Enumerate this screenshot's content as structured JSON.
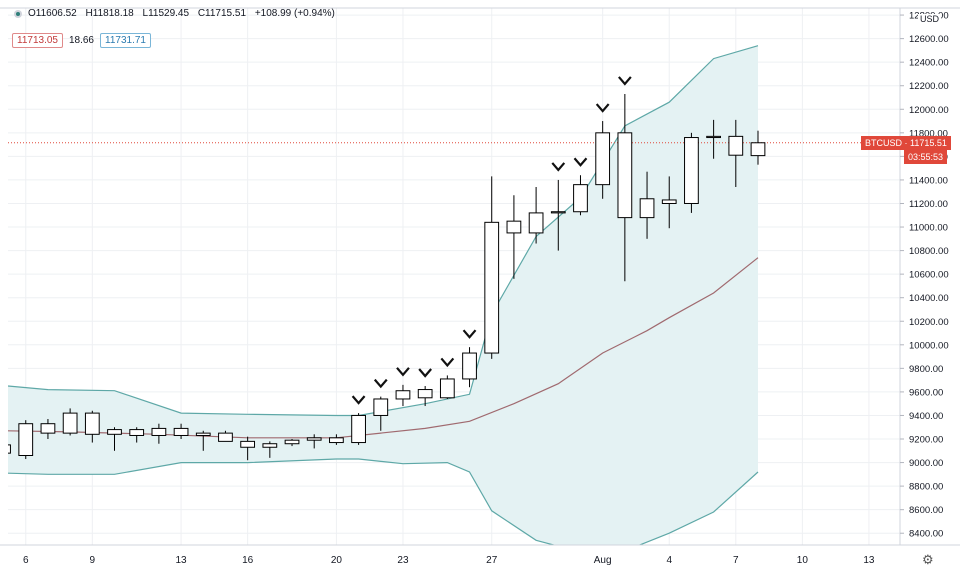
{
  "legend": {
    "open": "O11606.52",
    "high": "H11818.18",
    "low": "L11529.45",
    "close": "C11715.51",
    "change": "+108.99 (+0.94%)"
  },
  "indicator": {
    "value_a": "11713.05",
    "value_b": "18.66",
    "value_c": "11731.71"
  },
  "price_axis": {
    "currency": "USD",
    "tag_symbol": "BTCUSD",
    "tag_price": "11715.51",
    "countdown": "03:55:53"
  },
  "colors": {
    "band_fill": "#e4f2f3",
    "band_line": "#5ea8a7",
    "basis_line": "#a06a6f",
    "candle": "#000000",
    "current_price": "#e0483a"
  },
  "chart_data": {
    "type": "candlestick",
    "x_ticks": [
      {
        "day": 6,
        "label": "6"
      },
      {
        "day": 9,
        "label": "9"
      },
      {
        "day": 13,
        "label": "13"
      },
      {
        "day": 16,
        "label": "16"
      },
      {
        "day": 20,
        "label": "20"
      },
      {
        "day": 23,
        "label": "23"
      },
      {
        "day": 27,
        "label": "27"
      },
      {
        "day": 32,
        "label": "Aug"
      },
      {
        "day": 35,
        "label": "4"
      },
      {
        "day": 38,
        "label": "7"
      },
      {
        "day": 41,
        "label": "10"
      },
      {
        "day": 44,
        "label": "13"
      }
    ],
    "y_ticks": [
      "8400.00",
      "8600.00",
      "8800.00",
      "9000.00",
      "9200.00",
      "9400.00",
      "9600.00",
      "9800.00",
      "10000.00",
      "10200.00",
      "10400.00",
      "10600.00",
      "10800.00",
      "11000.00",
      "11200.00",
      "11400.00",
      "11600.00",
      "11800.00",
      "12000.00",
      "12200.00",
      "12400.00",
      "12600.00",
      "12800.00"
    ],
    "ylim": [
      8300,
      12860
    ],
    "xlim": [
      5.2,
      45.4
    ],
    "candles": [
      {
        "day": 5,
        "o": 9080,
        "h": 9200,
        "l": 9020,
        "c": 9150
      },
      {
        "day": 6,
        "o": 9060,
        "h": 9360,
        "l": 9030,
        "c": 9330
      },
      {
        "day": 7,
        "o": 9330,
        "h": 9370,
        "l": 9200,
        "c": 9250
      },
      {
        "day": 8,
        "o": 9250,
        "h": 9460,
        "l": 9230,
        "c": 9420
      },
      {
        "day": 9,
        "o": 9420,
        "h": 9440,
        "l": 9170,
        "c": 9240
      },
      {
        "day": 10,
        "o": 9240,
        "h": 9300,
        "l": 9100,
        "c": 9280
      },
      {
        "day": 11,
        "o": 9280,
        "h": 9300,
        "l": 9170,
        "c": 9230
      },
      {
        "day": 12,
        "o": 9230,
        "h": 9330,
        "l": 9160,
        "c": 9290
      },
      {
        "day": 13,
        "o": 9290,
        "h": 9330,
        "l": 9200,
        "c": 9230
      },
      {
        "day": 14,
        "o": 9230,
        "h": 9270,
        "l": 9100,
        "c": 9250
      },
      {
        "day": 15,
        "o": 9250,
        "h": 9270,
        "l": 9180,
        "c": 9180
      },
      {
        "day": 16,
        "o": 9180,
        "h": 9220,
        "l": 9020,
        "c": 9130
      },
      {
        "day": 17,
        "o": 9130,
        "h": 9180,
        "l": 9040,
        "c": 9160
      },
      {
        "day": 18,
        "o": 9160,
        "h": 9200,
        "l": 9140,
        "c": 9190
      },
      {
        "day": 19,
        "o": 9190,
        "h": 9240,
        "l": 9120,
        "c": 9210
      },
      {
        "day": 20,
        "o": 9210,
        "h": 9240,
        "l": 9150,
        "c": 9170
      },
      {
        "day": 21,
        "o": 9170,
        "h": 9420,
        "l": 9150,
        "c": 9400
      },
      {
        "day": 22,
        "o": 9400,
        "h": 9560,
        "l": 9270,
        "c": 9540
      },
      {
        "day": 23,
        "o": 9540,
        "h": 9660,
        "l": 9480,
        "c": 9610
      },
      {
        "day": 24,
        "o": 9550,
        "h": 9650,
        "l": 9480,
        "c": 9620
      },
      {
        "day": 25,
        "o": 9550,
        "h": 9740,
        "l": 9540,
        "c": 9710
      },
      {
        "day": 26,
        "o": 9710,
        "h": 9980,
        "l": 9640,
        "c": 9930
      },
      {
        "day": 27,
        "o": 9930,
        "h": 11430,
        "l": 9880,
        "c": 11040
      },
      {
        "day": 28,
        "o": 10950,
        "h": 11270,
        "l": 10560,
        "c": 11050
      },
      {
        "day": 29,
        "o": 10950,
        "h": 11340,
        "l": 10860,
        "c": 11120
      },
      {
        "day": 30,
        "o": 11120,
        "h": 11400,
        "l": 10800,
        "c": 11130
      },
      {
        "day": 31,
        "o": 11130,
        "h": 11440,
        "l": 11100,
        "c": 11360
      },
      {
        "day": 32,
        "o": 11360,
        "h": 11900,
        "l": 11240,
        "c": 11800
      },
      {
        "day": 33,
        "o": 11800,
        "h": 12130,
        "l": 10540,
        "c": 11080
      },
      {
        "day": 34,
        "o": 11080,
        "h": 11470,
        "l": 10900,
        "c": 11240
      },
      {
        "day": 35,
        "o": 11200,
        "h": 11430,
        "l": 10990,
        "c": 11230
      },
      {
        "day": 36,
        "o": 11200,
        "h": 11800,
        "l": 11120,
        "c": 11760
      },
      {
        "day": 37,
        "o": 11760,
        "h": 11910,
        "l": 11580,
        "c": 11770
      },
      {
        "day": 38,
        "o": 11770,
        "h": 11910,
        "l": 11340,
        "c": 11610
      },
      {
        "day": 39,
        "o": 11606.52,
        "h": 11818.18,
        "l": 11529.45,
        "c": 11715.51
      }
    ],
    "markers_days": [
      21,
      22,
      23,
      24,
      25,
      26,
      30,
      31,
      32,
      33
    ],
    "upper_band": [
      [
        5.2,
        9650
      ],
      [
        7,
        9620
      ],
      [
        10,
        9610
      ],
      [
        13,
        9420
      ],
      [
        16,
        9410
      ],
      [
        20,
        9400
      ],
      [
        21,
        9400
      ],
      [
        24,
        9500
      ],
      [
        26,
        9580
      ],
      [
        27,
        10260
      ],
      [
        29,
        10920
      ],
      [
        31,
        11250
      ],
      [
        33,
        11860
      ],
      [
        35,
        12060
      ],
      [
        37,
        12430
      ],
      [
        39,
        12540
      ]
    ],
    "lower_band": [
      [
        5.2,
        8910
      ],
      [
        7,
        8900
      ],
      [
        10,
        8900
      ],
      [
        13,
        9000
      ],
      [
        16,
        9000
      ],
      [
        20,
        9030
      ],
      [
        21,
        9030
      ],
      [
        23,
        8990
      ],
      [
        25,
        9000
      ],
      [
        26,
        8920
      ],
      [
        27,
        8590
      ],
      [
        29,
        8340
      ],
      [
        31,
        8240
      ],
      [
        33,
        8250
      ],
      [
        35,
        8400
      ],
      [
        37,
        8580
      ],
      [
        39,
        8920
      ]
    ],
    "basis": [
      [
        5.2,
        9270
      ],
      [
        8,
        9260
      ],
      [
        12,
        9240
      ],
      [
        16,
        9210
      ],
      [
        20,
        9210
      ],
      [
        22,
        9250
      ],
      [
        24,
        9290
      ],
      [
        26,
        9350
      ],
      [
        28,
        9500
      ],
      [
        30,
        9670
      ],
      [
        32,
        9930
      ],
      [
        34,
        10120
      ],
      [
        35,
        10230
      ],
      [
        37,
        10440
      ],
      [
        39,
        10740
      ]
    ],
    "current_price": 11715.51
  }
}
